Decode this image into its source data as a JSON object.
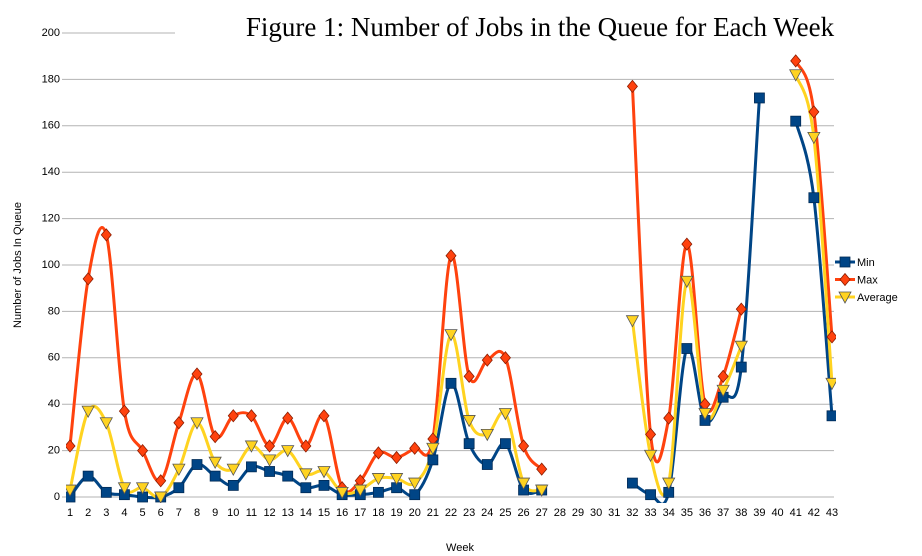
{
  "chart_data": {
    "type": "line",
    "title": "Figure 1:  Number of Jobs in the Queue for Each Week",
    "x_label": "Week",
    "y_label": "Number of Jobs In Queue",
    "categories": [
      "1",
      "2",
      "3",
      "4",
      "5",
      "6",
      "7",
      "8",
      "9",
      "10",
      "11",
      "12",
      "13",
      "14",
      "15",
      "16",
      "17",
      "18",
      "19",
      "20",
      "21",
      "22",
      "23",
      "24",
      "25",
      "26",
      "27",
      "28",
      "29",
      "30",
      "31",
      "32",
      "33",
      "34",
      "35",
      "36",
      "37",
      "38",
      "39",
      "40",
      "41",
      "42",
      "43"
    ],
    "series": [
      {
        "name": "Min",
        "color": "#004586",
        "marker": "square",
        "values": [
          0,
          9,
          2,
          1,
          0,
          0,
          4,
          14,
          9,
          5,
          13,
          11,
          9,
          4,
          5,
          1,
          1,
          2,
          4,
          1,
          16,
          49,
          23,
          14,
          23,
          3,
          3,
          null,
          null,
          null,
          null,
          6,
          1,
          2,
          64,
          33,
          43,
          56,
          172,
          null,
          162,
          129,
          35
        ]
      },
      {
        "name": "Max",
        "color": "#ff420e",
        "marker": "diamond",
        "values": [
          22,
          94,
          113,
          37,
          20,
          7,
          32,
          53,
          26,
          35,
          35,
          22,
          34,
          22,
          35,
          4,
          7,
          19,
          17,
          21,
          25,
          104,
          52,
          59,
          60,
          22,
          12,
          null,
          null,
          null,
          null,
          177,
          27,
          34,
          109,
          40,
          52,
          81,
          null,
          null,
          188,
          166,
          69
        ]
      },
      {
        "name": "Average",
        "color": "#ffd320",
        "marker": "triangle",
        "values": [
          3,
          37,
          32,
          4,
          4,
          0,
          12,
          32,
          15,
          12,
          22,
          16,
          20,
          10,
          11,
          2,
          3,
          8,
          8,
          6,
          21,
          70,
          33,
          27,
          36,
          6,
          3,
          null,
          null,
          null,
          null,
          76,
          18,
          6,
          93,
          36,
          46,
          65,
          null,
          null,
          182,
          155,
          49
        ]
      }
    ],
    "ylim": [
      0,
      200
    ],
    "yticks": [
      0,
      20,
      40,
      60,
      80,
      100,
      120,
      140,
      160,
      180,
      200
    ],
    "grid": true,
    "smooth": true,
    "legend": "right"
  }
}
